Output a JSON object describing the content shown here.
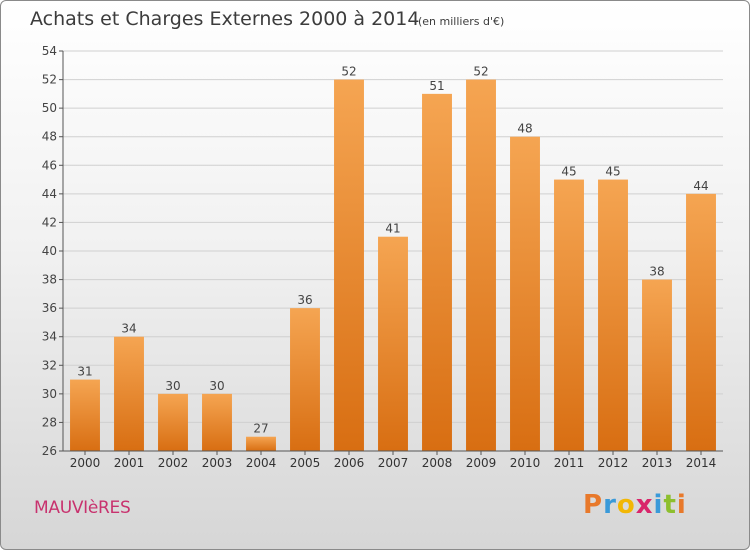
{
  "title": "Achats et Charges Externes 2000 à 2014",
  "subtitle": "(en milliers d'€)",
  "town": "MAUVIèRES",
  "logo": "Proxiti",
  "colors": {
    "bar_top": "#f5a552",
    "bar_bottom": "#d86e12",
    "axis": "#555555",
    "grid": "#d0d0d0"
  },
  "chart_data": {
    "type": "bar",
    "title": "Achats et Charges Externes 2000 à 2014",
    "subtitle": "(en milliers d'€)",
    "categories": [
      "2000",
      "2001",
      "2002",
      "2003",
      "2004",
      "2005",
      "2006",
      "2007",
      "2008",
      "2009",
      "2010",
      "2011",
      "2012",
      "2013",
      "2014"
    ],
    "values": [
      31,
      34,
      30,
      30,
      27,
      36,
      52,
      41,
      51,
      52,
      48,
      45,
      45,
      38,
      44
    ],
    "ylim": [
      26,
      54
    ],
    "yticks": [
      26,
      28,
      30,
      32,
      34,
      36,
      38,
      40,
      42,
      44,
      46,
      48,
      50,
      52,
      54
    ],
    "grid": true,
    "data_labels": true
  }
}
